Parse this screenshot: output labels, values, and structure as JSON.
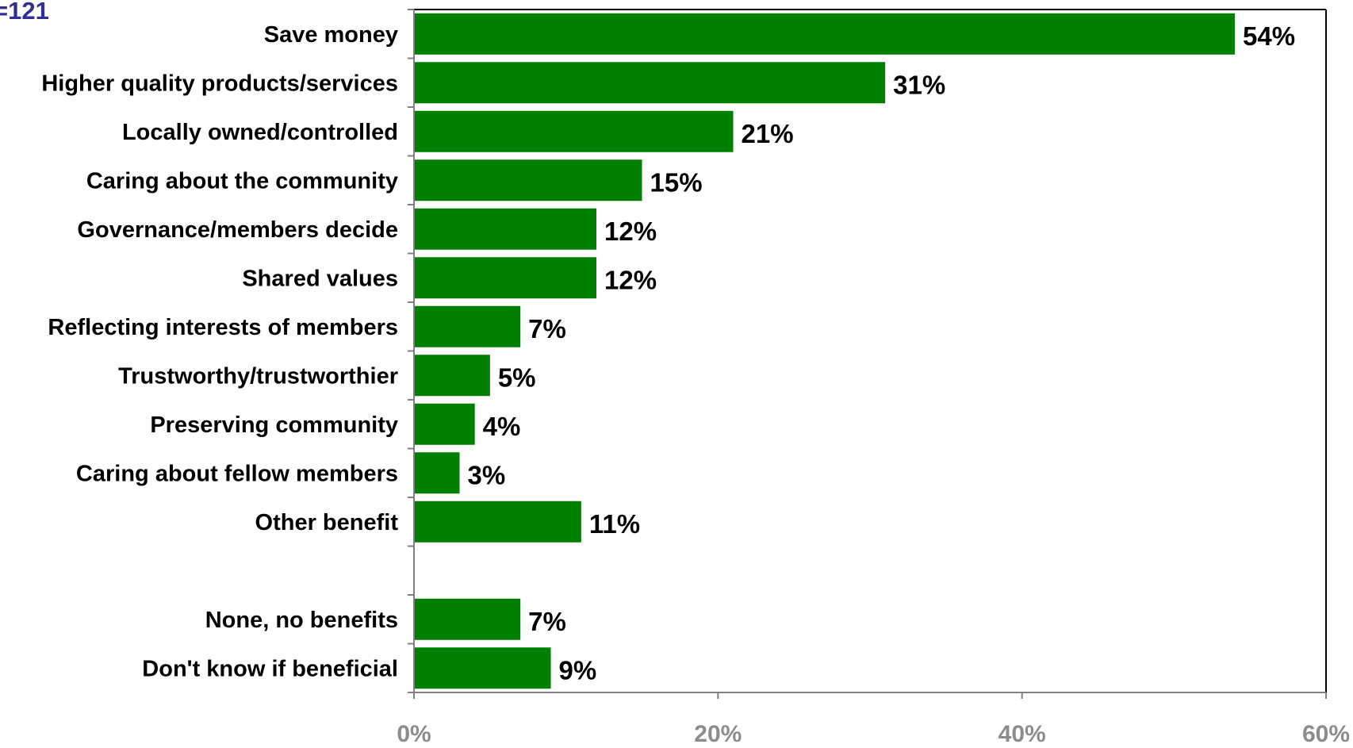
{
  "corner_text": "=121",
  "chart_data": {
    "type": "bar",
    "orientation": "horizontal",
    "categories": [
      "Save money",
      "Higher quality products/services",
      "Locally owned/controlled",
      "Caring about the community",
      "Governance/members decide",
      "Shared values",
      "Reflecting interests of members",
      "Trustworthy/trustworthier",
      "Preserving community",
      "Caring about fellow members",
      "Other benefit",
      "",
      "None, no benefits",
      "Don't know if beneficial"
    ],
    "values": [
      54,
      31,
      21,
      15,
      12,
      12,
      7,
      5,
      4,
      3,
      11,
      null,
      7,
      9
    ],
    "data_labels": [
      "54%",
      "31%",
      "21%",
      "15%",
      "12%",
      "12%",
      "7%",
      "5%",
      "4%",
      "3%",
      "11%",
      "",
      "7%",
      "9%"
    ],
    "xlim": [
      0,
      60
    ],
    "x_ticks": [
      0,
      20,
      40,
      60
    ],
    "x_tick_labels": [
      "0%",
      "20%",
      "40%",
      "60%"
    ],
    "bar_color": "#008000",
    "grid": false,
    "legend": "none"
  }
}
